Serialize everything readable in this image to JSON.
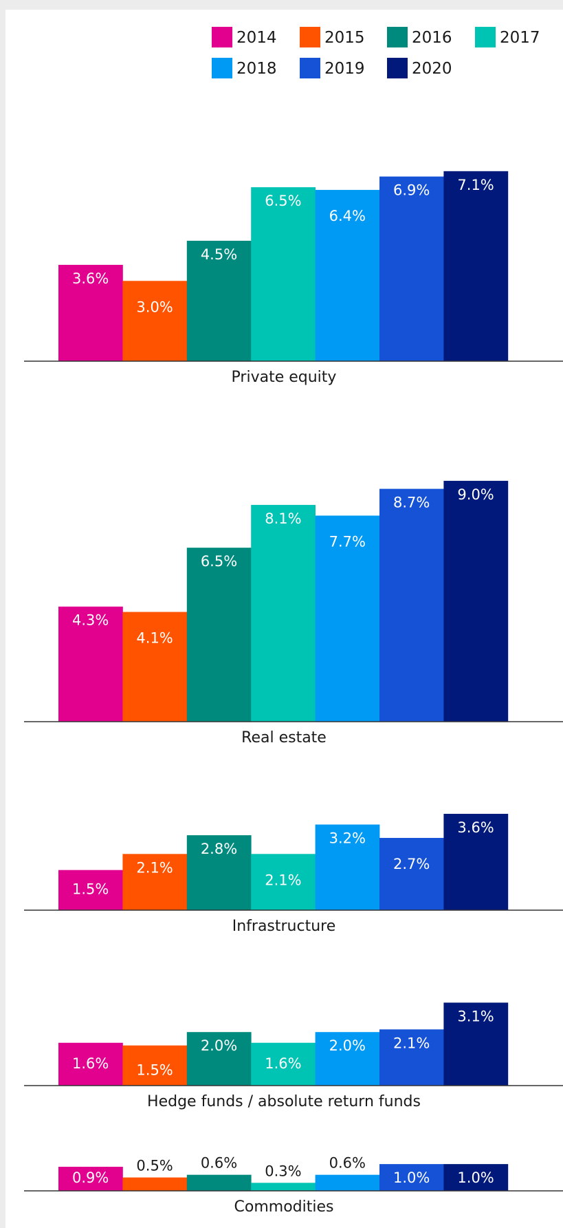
{
  "chart_data": {
    "type": "bar",
    "legend": {
      "placement": "top-right",
      "entries": [
        {
          "name": "2014",
          "color": "#e2008f"
        },
        {
          "name": "2015",
          "color": "#ff5300"
        },
        {
          "name": "2016",
          "color": "#008a7e"
        },
        {
          "name": "2017",
          "color": "#00c4b3"
        },
        {
          "name": "2018",
          "color": "#009af5"
        },
        {
          "name": "2019",
          "color": "#1652d6"
        },
        {
          "name": "2020",
          "color": "#00197a"
        }
      ]
    },
    "series_names": [
      "2014",
      "2015",
      "2016",
      "2017",
      "2018",
      "2019",
      "2020"
    ],
    "panels": [
      {
        "category": "Private equity",
        "values": [
          3.6,
          3.0,
          4.5,
          6.5,
          6.4,
          6.9,
          7.1
        ],
        "labels": [
          "3.6%",
          "3.0%",
          "4.5%",
          "6.5%",
          "6.4%",
          "6.9%",
          "7.1%"
        ]
      },
      {
        "category": "Real estate",
        "values": [
          4.3,
          4.1,
          6.5,
          8.1,
          7.7,
          8.7,
          9.0
        ],
        "labels": [
          "4.3%",
          "4.1%",
          "6.5%",
          "8.1%",
          "7.7%",
          "8.7%",
          "9.0%"
        ]
      },
      {
        "category": "Infrastructure",
        "values": [
          1.5,
          2.1,
          2.8,
          2.1,
          3.2,
          2.7,
          3.6
        ],
        "labels": [
          "1.5%",
          "2.1%",
          "2.8%",
          "2.1%",
          "3.2%",
          "2.7%",
          "3.6%"
        ]
      },
      {
        "category": "Hedge funds / absolute return funds",
        "values": [
          1.6,
          1.5,
          2.0,
          1.6,
          2.0,
          2.1,
          3.1
        ],
        "labels": [
          "1.6%",
          "1.5%",
          "2.0%",
          "1.6%",
          "2.0%",
          "2.1%",
          "3.1%"
        ]
      },
      {
        "category": "Commodities",
        "values": [
          0.9,
          0.5,
          0.6,
          0.3,
          0.6,
          1.0,
          1.0
        ],
        "labels": [
          "0.9%",
          "0.5%",
          "0.6%",
          "0.3%",
          "0.6%",
          "1.0%",
          "1.0%"
        ]
      }
    ],
    "grid": false,
    "title": "",
    "xlabel": "",
    "ylabel": ""
  }
}
